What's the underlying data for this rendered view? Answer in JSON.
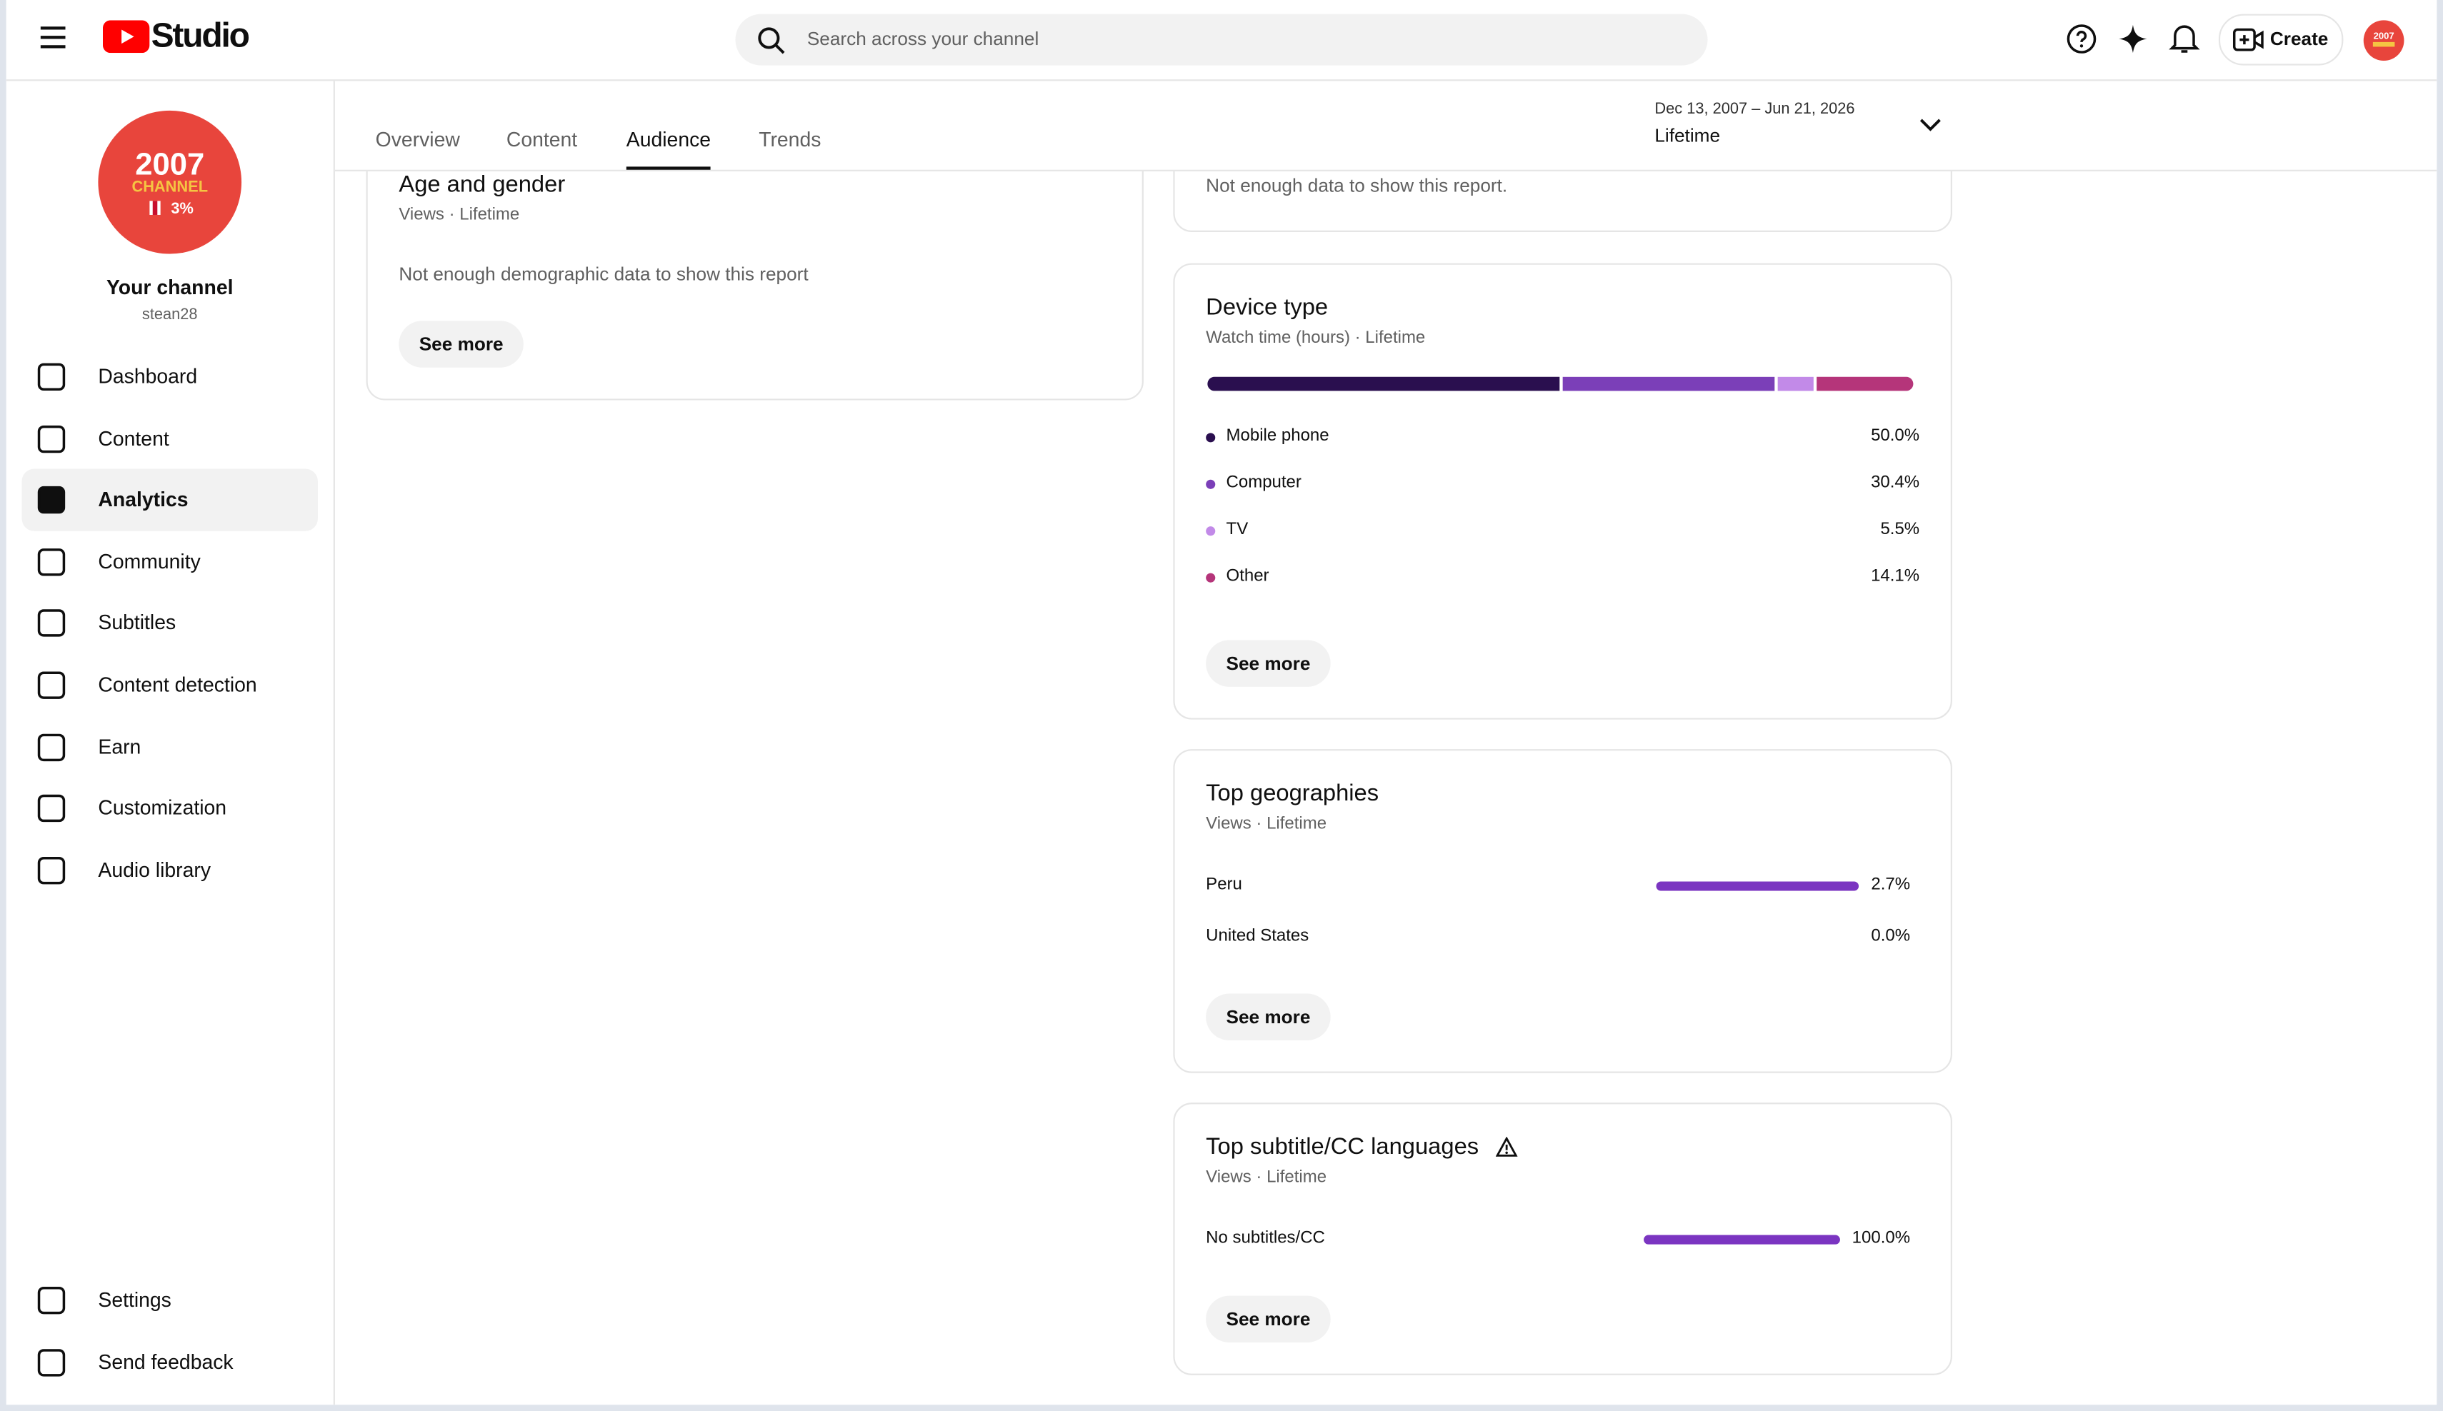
{
  "header": {
    "logo_text": "Studio",
    "search_placeholder": "Search across your channel",
    "create": "Create"
  },
  "sidebar": {
    "avatar": {
      "line1": "2007",
      "line2": "CHANNEL",
      "line3": "3%"
    },
    "channel_title": "Your channel",
    "channel_handle": "stean28",
    "nav": [
      "Dashboard",
      "Content",
      "Analytics",
      "Community",
      "Subtitles",
      "Content detection",
      "Earn",
      "Customization",
      "Audio library"
    ],
    "active_nav": 2,
    "footer_nav": [
      "Settings",
      "Send feedback"
    ]
  },
  "tabs": [
    "Overview",
    "Content",
    "Audience",
    "Trends"
  ],
  "active_tab": 2,
  "date_range": {
    "range": "Dec 13, 2007 – Jun 21, 2026",
    "label": "Lifetime"
  },
  "age_gender": {
    "title": "Age and gender",
    "subtitle": "Views · Lifetime",
    "message": "Not enough demographic data to show this report",
    "button": "See more"
  },
  "partial_card": {
    "message": "Not enough data to show this report."
  },
  "device_type": {
    "title": "Device type",
    "subtitle": "Watch time (hours) · Lifetime",
    "items": [
      {
        "name": "Mobile phone",
        "color": "#2a0f4f",
        "value": 50.0,
        "value_label": "50.0%"
      },
      {
        "name": "Computer",
        "color": "#7b3fb8",
        "value": 30.4,
        "value_label": "30.4%"
      },
      {
        "name": "TV",
        "color": "#c28ae8",
        "value": 5.5,
        "value_label": "5.5%"
      },
      {
        "name": "Other",
        "color": "#b5357a",
        "value": 14.1,
        "value_label": "14.1%"
      }
    ],
    "button": "See more"
  },
  "top_geographies": {
    "title": "Top geographies",
    "subtitle": "Views · Lifetime",
    "bar_color": "#7b35c1",
    "rows": [
      {
        "name": "Peru",
        "value": 2.7,
        "value_label": "2.7%"
      },
      {
        "name": "United States",
        "value": 0.0,
        "value_label": "0.0%"
      }
    ],
    "button": "See more"
  },
  "top_subtitles": {
    "title": "Top subtitle/CC languages",
    "subtitle": "Views · Lifetime",
    "bar_color": "#7b35c1",
    "rows": [
      {
        "name": "No subtitles/CC",
        "value": 100.0,
        "value_label": "100.0%"
      }
    ],
    "button": "See more"
  }
}
